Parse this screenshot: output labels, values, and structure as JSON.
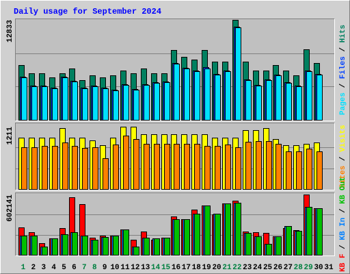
{
  "title": "Daily usage for September 2024",
  "legend_separator": " / ",
  "chart_data": [
    {
      "type": "bar",
      "ylim": [
        0,
        12833
      ],
      "yticks": [
        12833
      ],
      "legend_reversed": true,
      "series": [
        {
          "name": "Hits",
          "color": "#008060",
          "values": [
            7032,
            5977,
            5977,
            5450,
            5977,
            6592,
            5098,
            5713,
            5450,
            5713,
            6329,
            5977,
            6592,
            5977,
            5977,
            8965,
            8087,
            7735,
            8965,
            7471,
            7471,
            12833,
            7471,
            6329,
            6329,
            7032,
            6329,
            5713,
            9054,
            7296,
            null
          ]
        },
        {
          "name": "Files",
          "color": "#0040ff",
          "values": [
            5540,
            4400,
            4400,
            4130,
            5540,
            5010,
            4130,
            4400,
            4130,
            3870,
            4570,
            3960,
            4570,
            4840,
            4920,
            7300,
            6680,
            6330,
            6769,
            5890,
            6330,
            11950,
            5190,
            4480,
            5190,
            5800,
            4840,
            4400,
            6330,
            5890,
            null
          ]
        },
        {
          "name": "Pages",
          "color": "#00e0ff",
          "values": [
            5450,
            4307,
            4307,
            4043,
            5450,
            4922,
            4043,
            4307,
            4043,
            3780,
            4483,
            3868,
            4483,
            4747,
            4834,
            7208,
            6592,
            6241,
            6592,
            5801,
            6241,
            11866,
            5098,
            4395,
            5098,
            5713,
            4747,
            4307,
            6241,
            5801,
            null
          ]
        }
      ]
    },
    {
      "type": "bar",
      "ylim": [
        0,
        1211
      ],
      "yticks": [
        1211
      ],
      "legend_reversed": true,
      "series": [
        {
          "name": "Visits",
          "color": "#ffff00",
          "values": [
            998,
            998,
            998,
            998,
            1184,
            998,
            998,
            945,
            852,
            998,
            1211,
            1211,
            1065,
            1065,
            1065,
            1065,
            1065,
            1065,
            1065,
            998,
            998,
            998,
            1144,
            1144,
            1184,
            971,
            852,
            852,
            878,
            905,
            null
          ]
        },
        {
          "name": "Sites",
          "color": "#ff8000",
          "values": [
            812,
            812,
            839,
            839,
            905,
            839,
            799,
            812,
            599,
            865,
            1038,
            972,
            879,
            879,
            879,
            879,
            879,
            879,
            839,
            839,
            865,
            812,
            918,
            932,
            932,
            879,
            732,
            732,
            785,
            732,
            null
          ]
        }
      ]
    },
    {
      "type": "bar",
      "ylim": [
        0,
        602141
      ],
      "yticks": [
        602141
      ],
      "legend_reversed": false,
      "categories": [
        "1",
        "2",
        "3",
        "4",
        "5",
        "6",
        "7",
        "8",
        "9",
        "10",
        "11",
        "12",
        "13",
        "14",
        "15",
        "16",
        "17",
        "18",
        "19",
        "20",
        "21",
        "22",
        "23",
        "24",
        "25",
        "26",
        "27",
        "28",
        "29",
        "30",
        "31"
      ],
      "category_colors": [
        "#008040",
        "#000000",
        "#000000",
        "#000000",
        "#000000",
        "#000000",
        "#008040",
        "#008040",
        "#000000",
        "#000000",
        "#000000",
        "#000000",
        "#000000",
        "#008040",
        "#008040",
        "#000000",
        "#000000",
        "#000000",
        "#000000",
        "#000000",
        "#008040",
        "#008040",
        "#000000",
        "#000000",
        "#000000",
        "#000000",
        "#000000",
        "#008040",
        "#008040",
        "#000000",
        "#000000"
      ],
      "series": [
        {
          "name": "KB F",
          "color": "#ff0000",
          "values": [
            273720,
            225819,
            116331,
            164232,
            266877,
            574812,
            506382,
            171075,
            191604,
            191604,
            253191,
            150546,
            232662,
            150546,
            171075,
            383208,
            355836,
            451638,
            492696,
            403737,
            513225,
            540597,
            232662,
            225819,
            218976,
            184761,
            266877,
            246348,
            602141,
            465324,
            null
          ]
        },
        {
          "name": "KB In",
          "color": "#0080ff",
          "values": [
            191604,
            191604,
            82116,
            164232,
            205290,
            225819,
            191604,
            150546,
            177918,
            191604,
            253191,
            82116,
            171075,
            164232,
            171075,
            355836,
            355836,
            410580,
            492696,
            410580,
            513225,
            520068,
            218976,
            184761,
            109488,
            184761,
            287406,
            239505,
            479010,
            465324,
            null
          ]
        },
        {
          "name": "KB Out",
          "color": "#00c000",
          "values": [
            191604,
            191604,
            82116,
            164232,
            205290,
            225819,
            191604,
            150546,
            177918,
            191604,
            253191,
            82116,
            171075,
            164232,
            171075,
            355836,
            355836,
            410580,
            492696,
            410580,
            513225,
            520068,
            218976,
            184761,
            109488,
            184761,
            287406,
            239505,
            479010,
            465324,
            null
          ]
        }
      ]
    }
  ]
}
